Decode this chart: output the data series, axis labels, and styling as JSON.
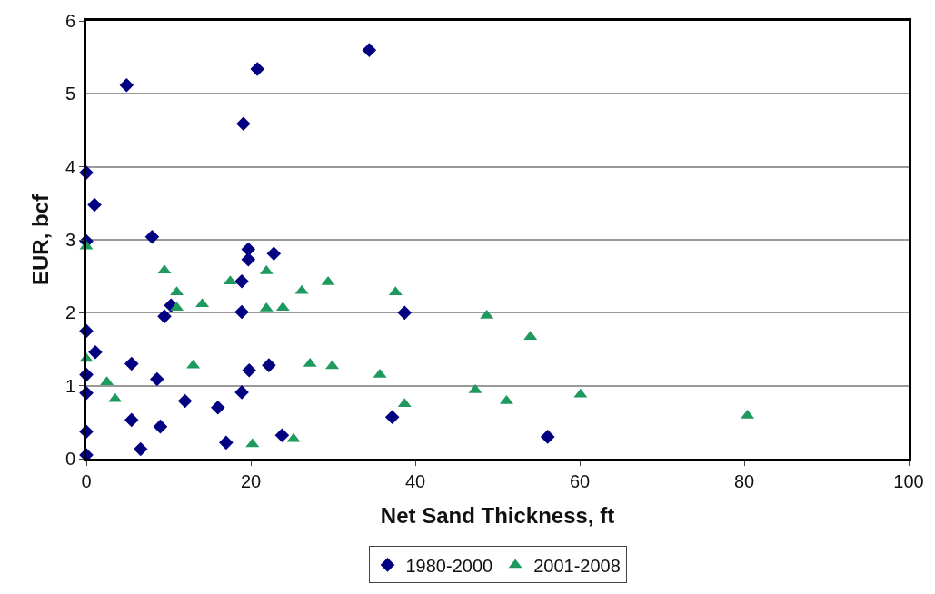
{
  "chart_data": {
    "type": "scatter",
    "xlabel": "Net Sand Thickness, ft",
    "ylabel": "EUR, bcf",
    "xlim": [
      0,
      100
    ],
    "xticks": [
      0,
      20,
      40,
      60,
      80,
      100
    ],
    "ylim": [
      0,
      6
    ],
    "yticks": [
      0,
      1,
      2,
      3,
      4,
      5,
      6
    ],
    "grid": "y",
    "legend": "bottom",
    "series": [
      {
        "name": "1980-2000",
        "color": "#000080",
        "marker": "diamond",
        "x": [
          0,
          0,
          0,
          0,
          0,
          0,
          0,
          1,
          1.1,
          4.9,
          19.1,
          20.8,
          34.4,
          8.0,
          19.7,
          19.7,
          22.8,
          18.9,
          18.9,
          9.5,
          10.3,
          5.5,
          8.6,
          12.0,
          16.0,
          18.9,
          19.8,
          22.2,
          5.5,
          9.0,
          6.6,
          17.0,
          23.8,
          38.7,
          37.2,
          56.1
        ],
        "values": [
          0.05,
          0.37,
          0.9,
          1.15,
          1.75,
          2.98,
          3.92,
          3.48,
          1.46,
          5.12,
          4.59,
          5.34,
          5.6,
          3.04,
          2.87,
          2.73,
          2.81,
          2.43,
          2.01,
          1.95,
          2.1,
          1.3,
          1.09,
          0.79,
          0.7,
          0.91,
          1.21,
          1.28,
          0.53,
          0.44,
          0.13,
          0.22,
          0.32,
          2.0,
          0.57,
          0.3
        ]
      },
      {
        "name": "2001-2008",
        "color": "#1f9a5e",
        "marker": "triangle",
        "x": [
          0,
          9.5,
          11.0,
          11.0,
          14.1,
          17.5,
          21.9,
          21.9,
          23.9,
          26.2,
          29.4,
          0,
          2.5,
          3.5,
          13.0,
          20.2,
          25.2,
          27.2,
          29.9,
          35.7,
          37.6,
          38.7,
          47.3,
          48.7,
          51.1,
          54.0,
          60.1,
          80.4
        ],
        "values": [
          2.91,
          2.58,
          2.28,
          2.07,
          2.12,
          2.43,
          2.57,
          2.06,
          2.07,
          2.3,
          2.42,
          1.37,
          1.05,
          0.82,
          1.28,
          0.2,
          0.27,
          1.3,
          1.27,
          1.15,
          2.28,
          0.75,
          0.94,
          1.96,
          0.79,
          1.67,
          0.88,
          0.59
        ]
      }
    ]
  }
}
